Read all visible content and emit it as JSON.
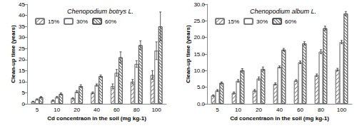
{
  "chart_data": [
    {
      "type": "bar",
      "title": "Chenopodium botrys L.",
      "x_label": "Cd concentraon in the soil (mg kg-1)",
      "y_label": "Clean-up time (years)",
      "categories": [
        "5",
        "10",
        "20",
        "40",
        "60",
        "80",
        "100"
      ],
      "series": [
        {
          "name": "15%",
          "color": "#7f7f7f",
          "marker": "hatch",
          "values": [
            1.0,
            1.5,
            2.5,
            5.0,
            8.0,
            10.0,
            13.0
          ],
          "errors": [
            0.2,
            0.3,
            0.3,
            0.4,
            1.0,
            1.0,
            2.0
          ]
        },
        {
          "name": "30%",
          "color": "#7f7f7f",
          "marker": "dots",
          "values": [
            2.0,
            3.0,
            5.5,
            8.5,
            14.0,
            18.0,
            24.0
          ],
          "errors": [
            0.3,
            0.4,
            0.5,
            0.5,
            1.5,
            1.5,
            4.0
          ]
        },
        {
          "name": "60%",
          "color": "#595959",
          "marker": "crosshatch",
          "values": [
            3.0,
            4.5,
            8.0,
            12.5,
            21.0,
            26.5,
            35.0
          ],
          "errors": [
            0.3,
            0.4,
            0.6,
            0.5,
            2.5,
            2.0,
            6.5
          ]
        }
      ],
      "ylim": [
        0,
        45
      ],
      "yticks": [
        0,
        5,
        10,
        15,
        20,
        25,
        30,
        35,
        40,
        45
      ],
      "legend": "upper left",
      "grid": false
    },
    {
      "type": "bar",
      "title": "Chenopodium album L.",
      "x_label": "Cd concentraon in the soil (mg kg-1)",
      "y_label": "Clean-up time (years)",
      "categories": [
        "5",
        "10",
        "20",
        "40",
        "60",
        "80",
        "100"
      ],
      "series": [
        {
          "name": "15%",
          "color": "#7f7f7f",
          "marker": "hatch",
          "values": [
            2.5,
            3.3,
            4.0,
            6.0,
            7.0,
            8.6,
            10.3
          ],
          "errors": [
            0.2,
            0.3,
            0.3,
            0.3,
            0.3,
            0.4,
            0.4
          ]
        },
        {
          "name": "30%",
          "color": "#7f7f7f",
          "marker": "dots",
          "values": [
            4.0,
            6.9,
            7.6,
            11.1,
            12.5,
            15.7,
            18.6
          ],
          "errors": [
            0.3,
            0.4,
            0.5,
            0.3,
            0.4,
            0.6,
            0.5
          ]
        },
        {
          "name": "60%",
          "color": "#595959",
          "marker": "crosshatch",
          "values": [
            6.3,
            10.1,
            10.5,
            16.3,
            18.2,
            22.8,
            27.2
          ],
          "errors": [
            0.3,
            0.5,
            0.6,
            0.4,
            0.5,
            0.6,
            0.6
          ]
        }
      ],
      "ylim": [
        0,
        30
      ],
      "yticks": [
        {
          "value": 0,
          "label": "0.0"
        },
        {
          "value": 5,
          "label": "5.0"
        },
        {
          "value": 10,
          "label": "10.0"
        },
        {
          "value": 15,
          "label": "15.0"
        },
        {
          "value": 20,
          "label": "20.0"
        },
        {
          "value": 25,
          "label": "25.0"
        },
        {
          "value": 30,
          "label": "30.0"
        }
      ],
      "legend": "upper left",
      "grid": false
    }
  ]
}
